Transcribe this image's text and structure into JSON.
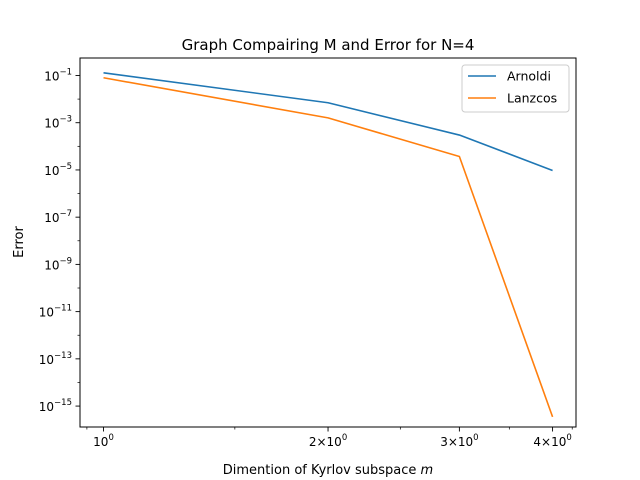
{
  "chart_data": {
    "type": "line",
    "title": "Graph Compairing M and Error for N=4",
    "xlabel": "Dimention of Kyrlov subspace",
    "xlabel_var": "m",
    "ylabel": "Error",
    "xscale": "log",
    "yscale": "log",
    "xlim": [
      0.93,
      4.3
    ],
    "ylim": [
      1.3e-16,
      0.55
    ],
    "grid": false,
    "legend_position": "top-right",
    "x_ticks": [
      {
        "value": 1,
        "base": "10",
        "exp": "0"
      },
      {
        "value": 2,
        "base": "2×10",
        "exp": "0"
      },
      {
        "value": 3,
        "base": "3×10",
        "exp": "0"
      },
      {
        "value": 4,
        "base": "4×10",
        "exp": "0"
      }
    ],
    "y_ticks": [
      {
        "value": 0.1,
        "base": "10",
        "exp": "−1"
      },
      {
        "value": 0.001,
        "base": "10",
        "exp": "−3"
      },
      {
        "value": 1e-05,
        "base": "10",
        "exp": "−5"
      },
      {
        "value": 1e-07,
        "base": "10",
        "exp": "−7"
      },
      {
        "value": 1e-09,
        "base": "10",
        "exp": "−9"
      },
      {
        "value": 1e-11,
        "base": "10",
        "exp": "−11"
      },
      {
        "value": 1e-13,
        "base": "10",
        "exp": "−13"
      },
      {
        "value": 1e-15,
        "base": "10",
        "exp": "−15"
      }
    ],
    "x": [
      1,
      2,
      3,
      4
    ],
    "series": [
      {
        "name": "Arnoldi",
        "color": "#1f77b4",
        "values": [
          0.13,
          0.007,
          0.0003,
          9.5e-06
        ]
      },
      {
        "name": "Lanzcos",
        "color": "#ff7f0e",
        "values": [
          0.08,
          0.0016,
          3.7e-05,
          3.5e-16
        ]
      }
    ]
  }
}
